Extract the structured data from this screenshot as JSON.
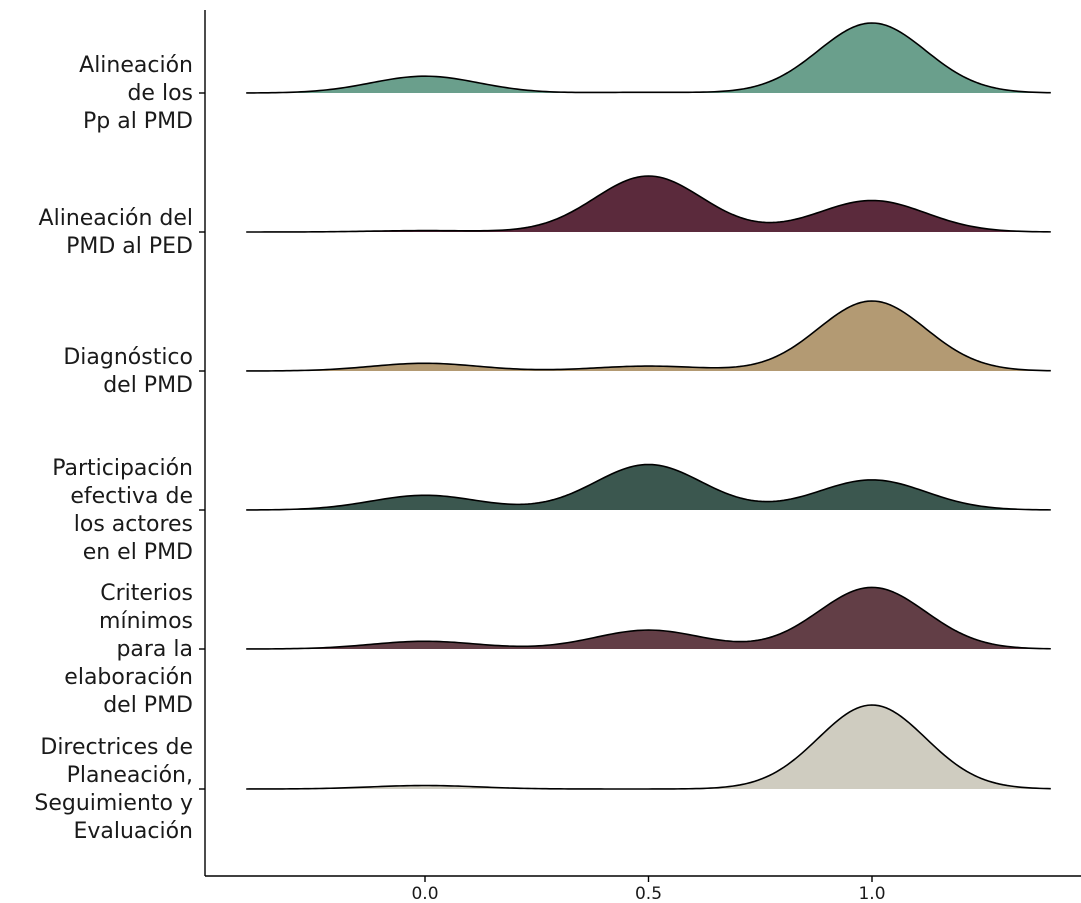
{
  "chart_data": {
    "type": "area",
    "subtype": "ridgeline-density",
    "title": "",
    "xlabel": "",
    "ylabel": "",
    "xlim": [
      -0.4,
      1.4
    ],
    "x_ticks": [
      0.0,
      0.5,
      1.0
    ],
    "x_tick_labels": [
      "0.0",
      "0.5",
      "1.0"
    ],
    "grid": false,
    "legend": "none",
    "series": [
      {
        "label_lines": [
          "Alineación",
          "de los",
          "Pp al PMD"
        ],
        "color": "#6a9f8c",
        "peaks": [
          {
            "center": 0.0,
            "sd": 0.12,
            "height": 0.24
          },
          {
            "center": 0.5,
            "sd": 0.12,
            "height": 0.01
          },
          {
            "center": 1.0,
            "sd": 0.12,
            "height": 1.0
          }
        ]
      },
      {
        "label_lines": [
          "Alineación del",
          "PMD al PED"
        ],
        "color": "#5b2a3c",
        "peaks": [
          {
            "center": 0.0,
            "sd": 0.12,
            "height": 0.02
          },
          {
            "center": 0.5,
            "sd": 0.12,
            "height": 0.8
          },
          {
            "center": 1.0,
            "sd": 0.12,
            "height": 0.45
          }
        ]
      },
      {
        "label_lines": [
          "Diagnóstico",
          "del PMD"
        ],
        "color": "#b39a73",
        "peaks": [
          {
            "center": 0.0,
            "sd": 0.12,
            "height": 0.11
          },
          {
            "center": 0.5,
            "sd": 0.12,
            "height": 0.07
          },
          {
            "center": 1.0,
            "sd": 0.12,
            "height": 1.0
          }
        ]
      },
      {
        "label_lines": [
          "Participación",
          "efectiva de",
          "los actores",
          "en el PMD"
        ],
        "color": "#3b574f",
        "peaks": [
          {
            "center": 0.0,
            "sd": 0.12,
            "height": 0.21
          },
          {
            "center": 0.5,
            "sd": 0.12,
            "height": 0.65
          },
          {
            "center": 1.0,
            "sd": 0.12,
            "height": 0.43
          }
        ]
      },
      {
        "label_lines": [
          "Criterios",
          "mínimos",
          "para la",
          "elaboración",
          "del PMD"
        ],
        "color": "#623e46",
        "peaks": [
          {
            "center": 0.0,
            "sd": 0.12,
            "height": 0.11
          },
          {
            "center": 0.5,
            "sd": 0.12,
            "height": 0.27
          },
          {
            "center": 1.0,
            "sd": 0.12,
            "height": 0.88
          }
        ]
      },
      {
        "label_lines": [
          "Directrices de",
          "Planeación,",
          "Seguimiento y",
          "Evaluación"
        ],
        "color": "#cfccc0",
        "peaks": [
          {
            "center": 0.0,
            "sd": 0.12,
            "height": 0.05
          },
          {
            "center": 0.5,
            "sd": 0.12,
            "height": 0.0
          },
          {
            "center": 1.0,
            "sd": 0.12,
            "height": 1.2
          }
        ]
      }
    ]
  }
}
